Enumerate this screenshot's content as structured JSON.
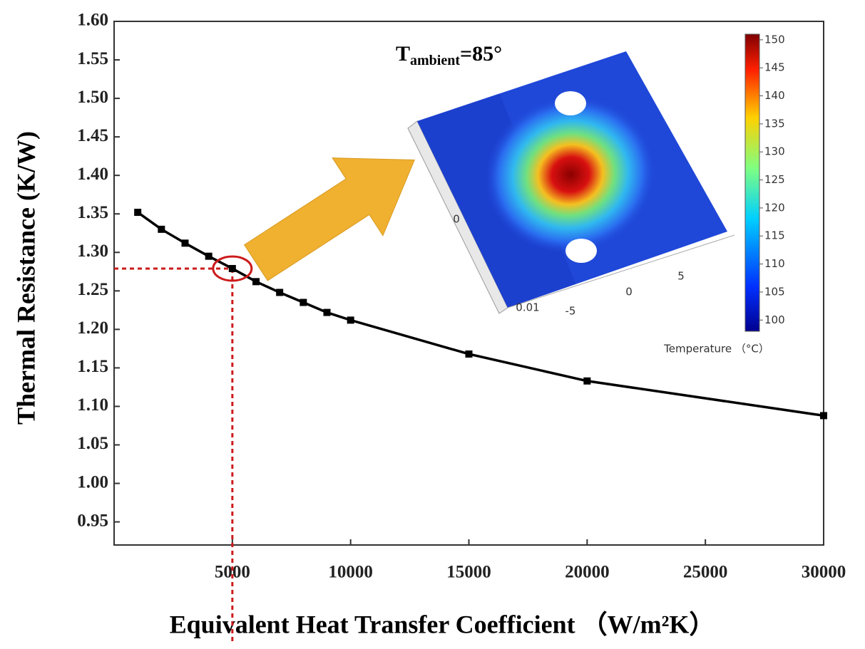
{
  "chart_data": {
    "type": "line",
    "x_label": "Equivalent Heat Transfer Coefficient （W/m²K）",
    "y_label": "Thermal Resistance (K/W)",
    "x": [
      1000,
      2000,
      3000,
      4000,
      5000,
      6000,
      7000,
      8000,
      9000,
      10000,
      15000,
      20000,
      30000
    ],
    "series": [
      {
        "color": "#000000",
        "values": [
          1.352,
          1.33,
          1.312,
          1.295,
          1.279,
          1.262,
          1.248,
          1.235,
          1.222,
          1.212,
          1.168,
          1.133,
          1.088
        ]
      }
    ],
    "highlight_index": 4,
    "highlight_color": "#cc1a1a",
    "xlim": [
      0,
      30000
    ],
    "ylim": [
      0.92,
      1.6
    ],
    "xticks": [
      5000,
      10000,
      15000,
      20000,
      25000,
      30000
    ],
    "yticks": [
      {
        "value": 0.95,
        "label": "0.95"
      },
      {
        "value": 1.0,
        "label": "1.00"
      },
      {
        "value": 1.05,
        "label": "1.05"
      },
      {
        "value": 1.1,
        "label": "1.10"
      },
      {
        "value": 1.15,
        "label": "1.15"
      },
      {
        "value": 1.2,
        "label": "1.20"
      },
      {
        "value": 1.25,
        "label": "1.25"
      },
      {
        "value": 1.3,
        "label": "1.30"
      },
      {
        "value": 1.35,
        "label": "1.35"
      },
      {
        "value": 1.4,
        "label": "1.40"
      },
      {
        "value": 1.45,
        "label": "1.45"
      },
      {
        "value": 1.5,
        "label": "1.50"
      },
      {
        "value": 1.55,
        "label": "1.55"
      },
      {
        "value": 1.6,
        "label": "1.60"
      }
    ],
    "inset": {
      "title": {
        "main": "T",
        "sub": "ambient",
        "rest": "=85°"
      },
      "colorbar": {
        "lim": [
          98,
          151
        ],
        "ticks": [
          100,
          105,
          110,
          115,
          120,
          125,
          130,
          135,
          140,
          145,
          150
        ],
        "label": "Temperature （°C）"
      },
      "axis_labels": [
        "0.01",
        "-5",
        "0",
        "5",
        "0"
      ]
    }
  }
}
